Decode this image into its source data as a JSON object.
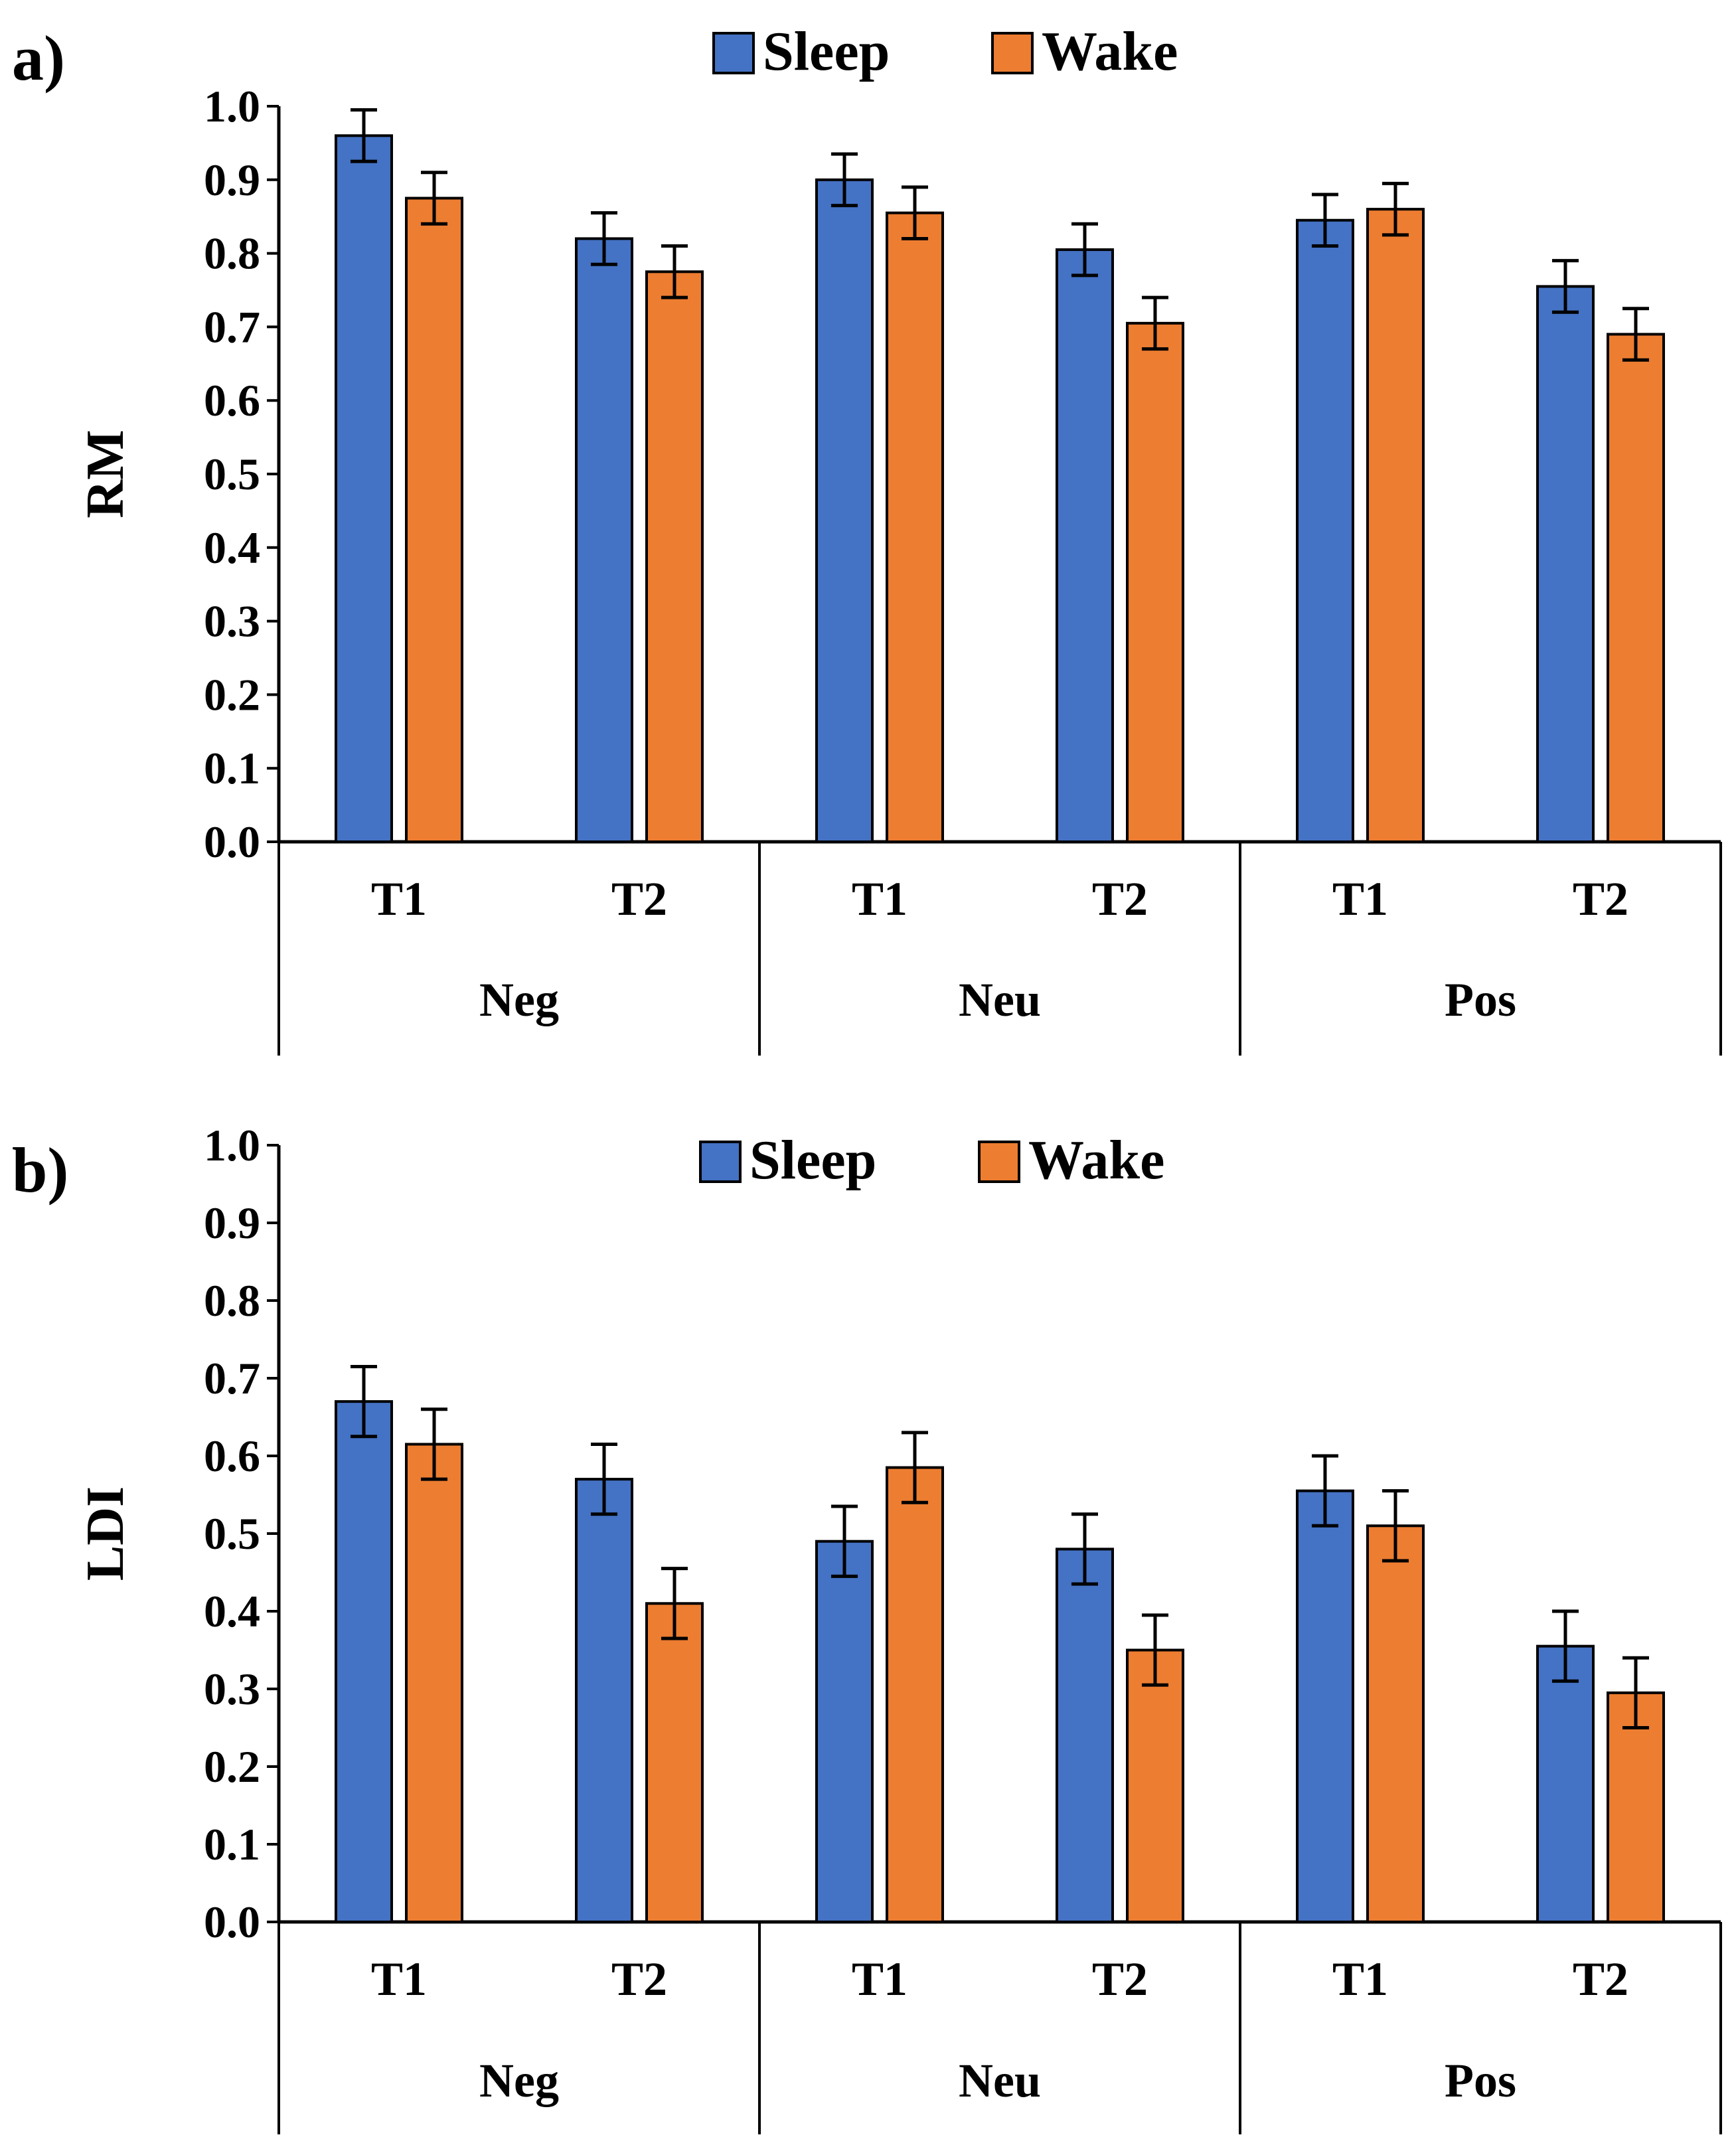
{
  "legend": {
    "sleep_label": "Sleep",
    "wake_label": "Wake"
  },
  "colors": {
    "sleep": "#4472C4",
    "wake": "#ED7D31",
    "axis": "#000000"
  },
  "chart_data": [
    {
      "panel": "a)",
      "type": "bar",
      "ylabel": "RM",
      "ylim": [
        0,
        1.0
      ],
      "yticks": [
        "0.0",
        "0.1",
        "0.2",
        "0.3",
        "0.4",
        "0.5",
        "0.6",
        "0.7",
        "0.8",
        "0.9",
        "1.0"
      ],
      "groups": [
        "Neg",
        "Neu",
        "Pos"
      ],
      "categories": [
        "T1",
        "T2",
        "T1",
        "T2",
        "T1",
        "T2"
      ],
      "series": [
        {
          "name": "Sleep",
          "values": [
            0.96,
            0.82,
            0.9,
            0.805,
            0.845,
            0.755
          ],
          "errors": [
            0.035,
            0.035,
            0.035,
            0.035,
            0.035,
            0.035
          ]
        },
        {
          "name": "Wake",
          "values": [
            0.875,
            0.775,
            0.855,
            0.705,
            0.86,
            0.69
          ],
          "errors": [
            0.035,
            0.035,
            0.035,
            0.035,
            0.035,
            0.035
          ]
        }
      ],
      "legend_position": "top-center"
    },
    {
      "panel": "b)",
      "type": "bar",
      "ylabel": "LDI",
      "ylim": [
        0,
        1.0
      ],
      "yticks": [
        "0.0",
        "0.1",
        "0.2",
        "0.3",
        "0.4",
        "0.5",
        "0.6",
        "0.7",
        "0.8",
        "0.9",
        "1.0"
      ],
      "groups": [
        "Neg",
        "Neu",
        "Pos"
      ],
      "categories": [
        "T1",
        "T2",
        "T1",
        "T2",
        "T1",
        "T2"
      ],
      "series": [
        {
          "name": "Sleep",
          "values": [
            0.67,
            0.57,
            0.49,
            0.48,
            0.555,
            0.355
          ],
          "errors": [
            0.045,
            0.045,
            0.045,
            0.045,
            0.045,
            0.045
          ]
        },
        {
          "name": "Wake",
          "values": [
            0.615,
            0.41,
            0.585,
            0.35,
            0.51,
            0.295
          ],
          "errors": [
            0.045,
            0.045,
            0.045,
            0.045,
            0.045,
            0.045
          ]
        }
      ],
      "legend_position": "top-center"
    }
  ]
}
